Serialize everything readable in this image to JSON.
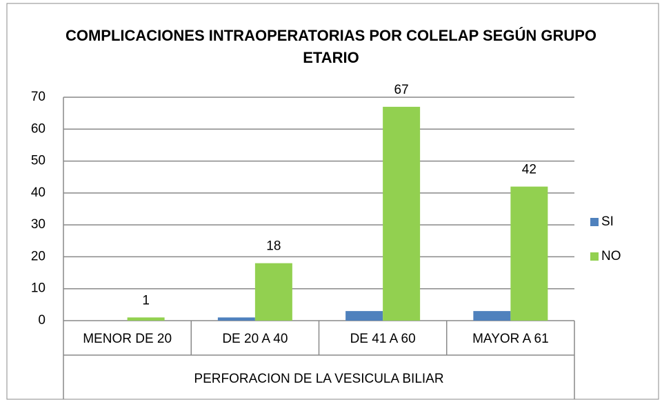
{
  "chart_data": {
    "type": "bar",
    "title": "COMPLICACIONES INTRAOPERATORIAS POR COLELAP SEGÚN GRUPO ETARIO",
    "x_label": "PERFORACION DE LA VESICULA BILIAR",
    "categories": [
      "MENOR DE 20",
      "DE 20 A 40",
      "DE 41 A 60",
      "MAYOR A 61"
    ],
    "series": [
      {
        "name": "SI",
        "color": "#4f81bd",
        "values": [
          0,
          1,
          3,
          3
        ],
        "data_labels": false
      },
      {
        "name": "NO",
        "color": "#92d050",
        "values": [
          1,
          18,
          67,
          42
        ],
        "data_labels": true
      }
    ],
    "ylim": [
      0,
      70
    ],
    "yticks": [
      0,
      10,
      20,
      30,
      40,
      50,
      60,
      70
    ],
    "grid": true,
    "legend": "right"
  }
}
